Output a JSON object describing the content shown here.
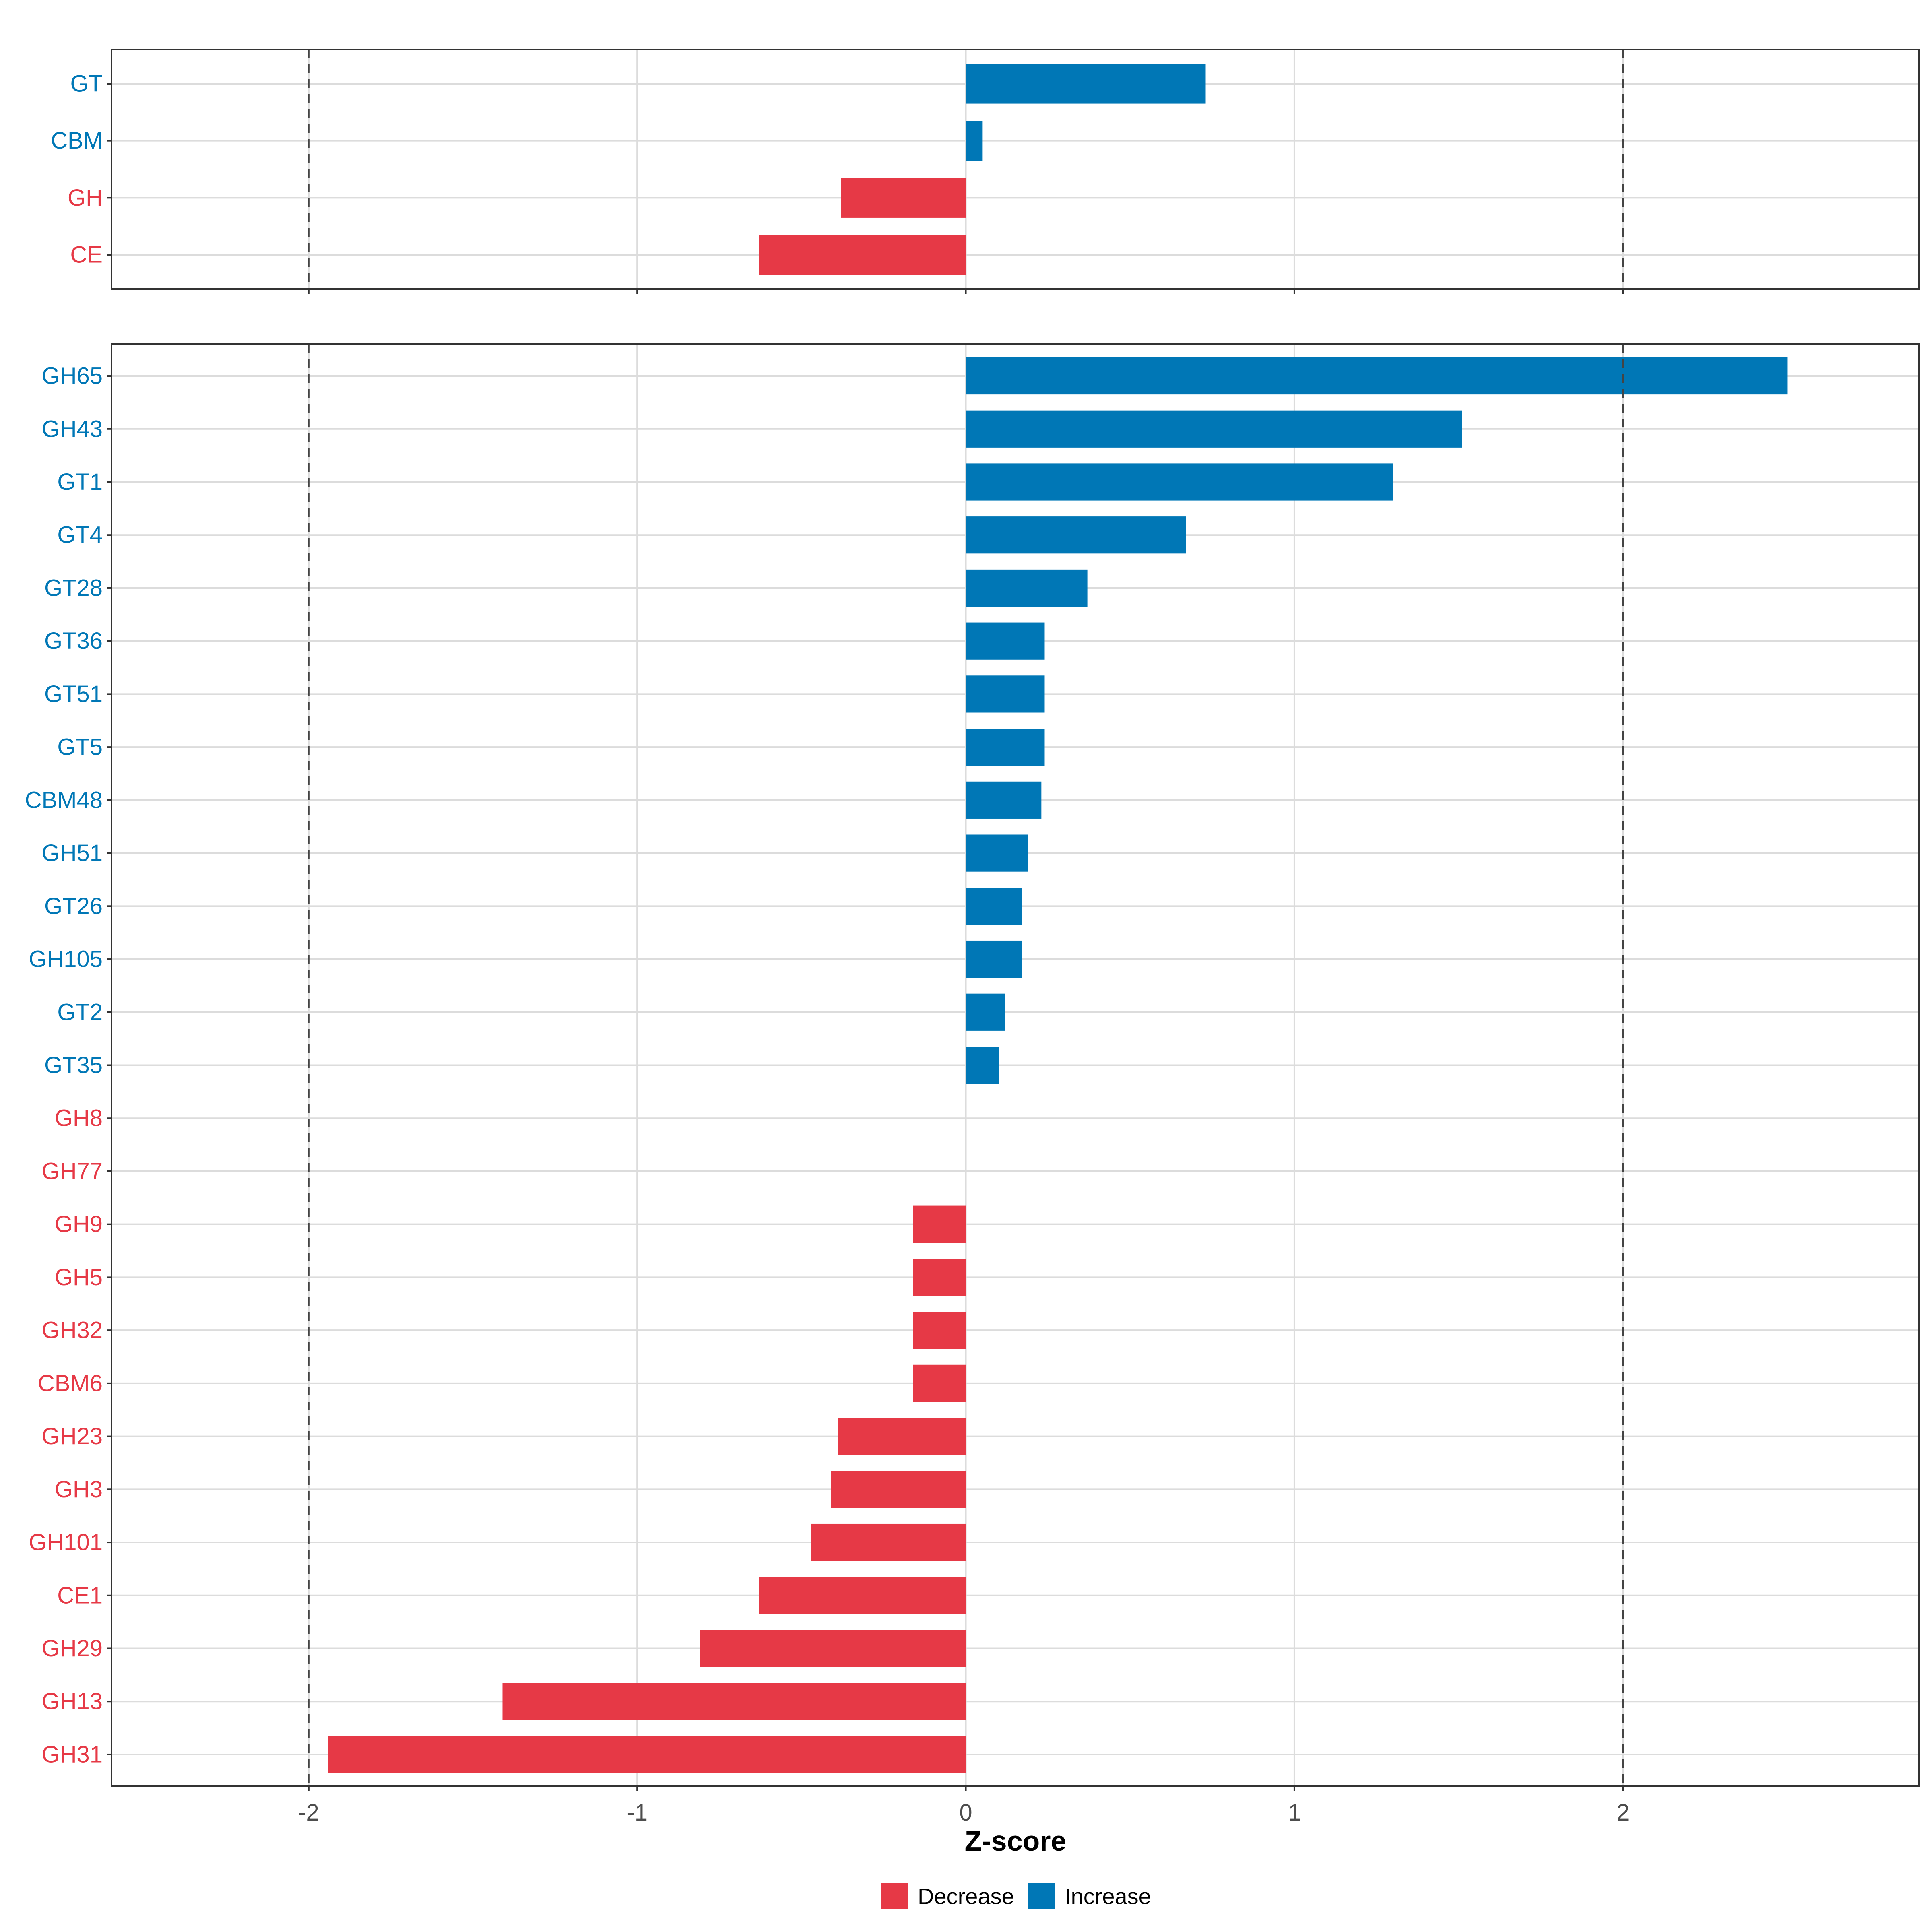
{
  "chart_data": {
    "type": "bar",
    "orientation": "horizontal",
    "xlabel": "Z-score",
    "xlim": [
      -2.6,
      2.9
    ],
    "x_ticks": [
      -2,
      -1,
      0,
      1,
      2
    ],
    "x_tick_labels": [
      "-2",
      "-1",
      "0",
      "1",
      "2"
    ],
    "reference_lines": [
      -2,
      2
    ],
    "grid": true,
    "legend": {
      "position": "bottom",
      "entries": [
        {
          "label": "Decrease",
          "color": "#e63946"
        },
        {
          "label": "Increase",
          "color": "#0077b6"
        }
      ]
    },
    "colors": {
      "Decrease": "#e63946",
      "Increase": "#0077b6"
    },
    "panels": [
      {
        "name": "family-classes",
        "categories": [
          "GT",
          "CBM",
          "GH",
          "CE"
        ],
        "values": [
          0.73,
          0.05,
          -0.38,
          -0.63
        ],
        "groups": [
          "Increase",
          "Increase",
          "Decrease",
          "Decrease"
        ]
      },
      {
        "name": "families",
        "categories": [
          "GH65",
          "GH43",
          "GT1",
          "GT4",
          "GT28",
          "GT36",
          "GT51",
          "GT5",
          "CBM48",
          "GH51",
          "GT26",
          "GH105",
          "GT2",
          "GT35",
          "GH8",
          "GH77",
          "GH9",
          "GH5",
          "GH32",
          "CBM6",
          "GH23",
          "GH3",
          "GH101",
          "CE1",
          "GH29",
          "GH13",
          "GH31"
        ],
        "values": [
          2.5,
          1.51,
          1.3,
          0.67,
          0.37,
          0.24,
          0.24,
          0.24,
          0.23,
          0.19,
          0.17,
          0.17,
          0.12,
          0.1,
          0.0,
          0.0,
          -0.16,
          -0.16,
          -0.16,
          -0.16,
          -0.39,
          -0.41,
          -0.47,
          -0.63,
          -0.81,
          -1.41,
          -1.94
        ],
        "groups": [
          "Increase",
          "Increase",
          "Increase",
          "Increase",
          "Increase",
          "Increase",
          "Increase",
          "Increase",
          "Increase",
          "Increase",
          "Increase",
          "Increase",
          "Increase",
          "Increase",
          "Decrease",
          "Decrease",
          "Decrease",
          "Decrease",
          "Decrease",
          "Decrease",
          "Decrease",
          "Decrease",
          "Decrease",
          "Decrease",
          "Decrease",
          "Decrease",
          "Decrease"
        ]
      }
    ]
  }
}
